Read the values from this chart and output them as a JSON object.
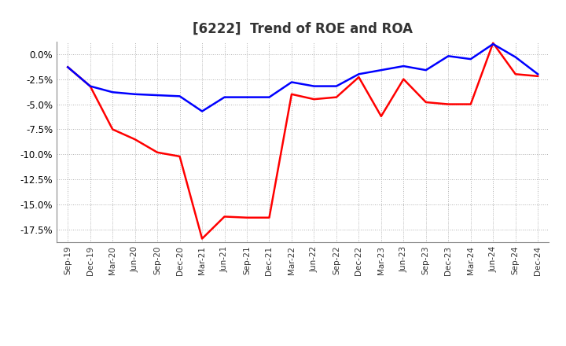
{
  "title": "[6222]  Trend of ROE and ROA",
  "x_labels": [
    "Sep-19",
    "Dec-19",
    "Mar-20",
    "Jun-20",
    "Sep-20",
    "Dec-20",
    "Mar-21",
    "Jun-21",
    "Sep-21",
    "Dec-21",
    "Mar-22",
    "Jun-22",
    "Sep-22",
    "Dec-22",
    "Mar-23",
    "Jun-23",
    "Sep-23",
    "Dec-23",
    "Mar-24",
    "Jun-24",
    "Sep-24",
    "Dec-24"
  ],
  "roe": [
    -1.3,
    -3.2,
    -7.5,
    -8.5,
    -9.8,
    -10.2,
    -18.4,
    -16.2,
    -16.3,
    -16.3,
    -4.0,
    -4.5,
    -4.3,
    -2.3,
    -6.2,
    -2.5,
    -4.8,
    -5.0,
    -5.0,
    1.1,
    -2.0,
    -2.2
  ],
  "roa": [
    -1.3,
    -3.2,
    -3.8,
    -4.0,
    -4.1,
    -4.2,
    -5.7,
    -4.3,
    -4.3,
    -4.3,
    -2.8,
    -3.2,
    -3.2,
    -2.0,
    -1.6,
    -1.2,
    -1.6,
    -0.2,
    -0.5,
    1.0,
    -0.3,
    -2.0
  ],
  "roe_color": "#ff0000",
  "roa_color": "#0000ff",
  "background_color": "#ffffff",
  "grid_color": "#b0b0b0",
  "ylim": [
    -18.75,
    1.25
  ],
  "yticks": [
    0.0,
    -2.5,
    -5.0,
    -7.5,
    -10.0,
    -12.5,
    -15.0,
    -17.5
  ],
  "title_fontsize": 12,
  "line_width": 1.8
}
